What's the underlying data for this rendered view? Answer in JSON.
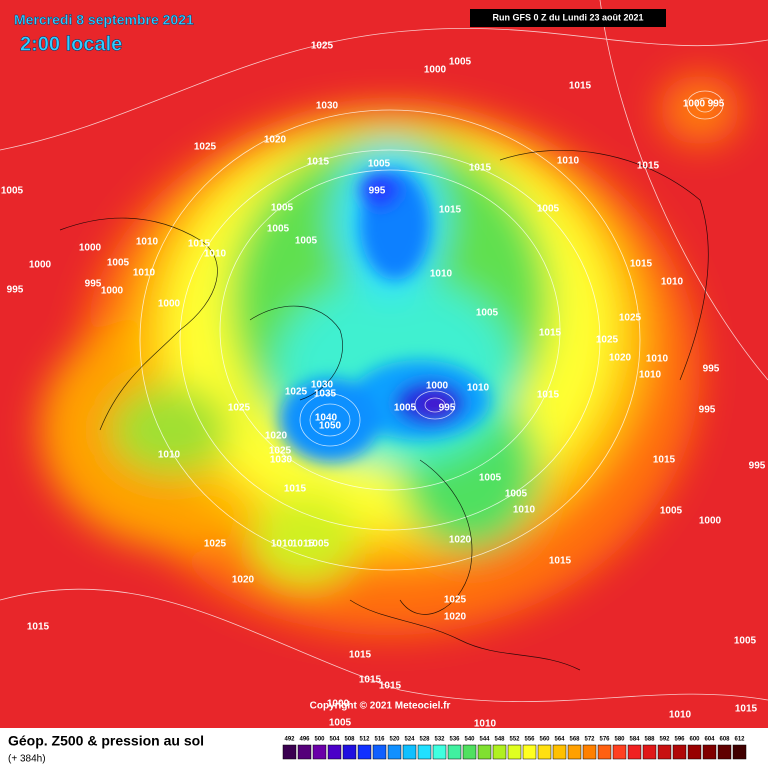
{
  "header": {
    "date": "Mercredi 8 septembre 2021",
    "time": "2:00 locale",
    "run": "Run GFS 0 Z du Lundi 23 août 2021",
    "copyright": "Copyright © 2021 Meteociel.fr"
  },
  "footer": {
    "title": "Géop. Z500 & pression au sol",
    "lead": "(+ 384h)"
  },
  "isobars": [
    1025,
    1000,
    1005,
    1015,
    1000,
    995,
    1030,
    1025,
    1020,
    1015,
    1005,
    995,
    1010,
    1015,
    1005,
    1015,
    1005,
    1015,
    1005,
    1005,
    1010,
    1015,
    1005,
    1000,
    1005,
    1010,
    1000,
    1010,
    1010,
    1015,
    995,
    995,
    1000,
    1000,
    1010,
    1005,
    1025,
    1015,
    1025,
    1020,
    1010,
    1010,
    995,
    1000,
    1010,
    1030,
    1035,
    1025,
    1015,
    1005,
    995,
    995,
    1025,
    1040,
    1050,
    1020,
    1025,
    1030,
    1010,
    1015,
    995,
    1005,
    1015,
    1005,
    1010,
    1005,
    1000,
    1010,
    1015,
    1005,
    1020,
    1025,
    1015,
    1020,
    1025,
    1020,
    1015,
    1005,
    1015,
    1015,
    1015,
    1000,
    1005,
    1010,
    1010,
    1015
  ],
  "legend": {
    "values": [
      492,
      496,
      500,
      504,
      508,
      512,
      516,
      520,
      524,
      528,
      532,
      536,
      540,
      544,
      548,
      552,
      556,
      560,
      564,
      568,
      572,
      576,
      580,
      584,
      588,
      592,
      596,
      600,
      604,
      608,
      612
    ],
    "colors": [
      "#3a0050",
      "#55007a",
      "#6a00a8",
      "#4b00c8",
      "#2010e0",
      "#1030ff",
      "#1060ff",
      "#1090ff",
      "#10c0ff",
      "#20e0ff",
      "#40ffe0",
      "#40f0a0",
      "#50e060",
      "#80e030",
      "#b0f020",
      "#e0ff20",
      "#ffff20",
      "#ffe010",
      "#ffc000",
      "#ffa000",
      "#ff8000",
      "#ff6010",
      "#ff4020",
      "#f02020",
      "#e01818",
      "#c81010",
      "#b00808",
      "#980000",
      "#800000",
      "#600000",
      "#400000"
    ]
  }
}
